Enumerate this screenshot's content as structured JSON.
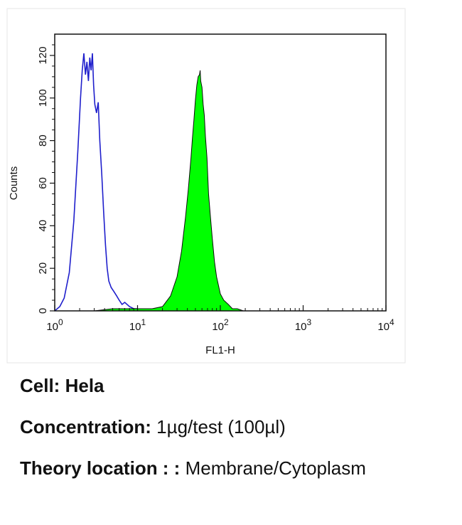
{
  "chart_data": {
    "type": "area",
    "xscale": "log",
    "xlim": [
      1,
      10000
    ],
    "ylim": [
      0,
      130
    ],
    "xlabel": "FL1-H",
    "ylabel": "Counts",
    "x_tick_labels": [
      {
        "value": 1,
        "base": "10",
        "exp": "0"
      },
      {
        "value": 10,
        "base": "10",
        "exp": "1"
      },
      {
        "value": 100,
        "base": "10",
        "exp": "2"
      },
      {
        "value": 1000,
        "base": "10",
        "exp": "3"
      },
      {
        "value": 10000,
        "base": "10",
        "exp": "4"
      }
    ],
    "y_ticks": [
      0,
      20,
      40,
      60,
      80,
      100,
      120
    ],
    "grid": false,
    "series": [
      {
        "style": "outline",
        "color": "#1f1fcc",
        "x": [
          1.0,
          1.15,
          1.3,
          1.5,
          1.7,
          1.9,
          2.05,
          2.15,
          2.25,
          2.35,
          2.45,
          2.55,
          2.65,
          2.75,
          2.85,
          2.95,
          3.05,
          3.2,
          3.35,
          3.5,
          3.7,
          3.9,
          4.1,
          4.3,
          4.5,
          4.8,
          5.2,
          5.6,
          6.0,
          6.5,
          7.0,
          8.0,
          9.0,
          10.0,
          12.0
        ],
        "y": [
          0,
          2,
          6,
          18,
          42,
          75,
          100,
          113,
          121,
          111,
          117,
          108,
          119,
          113,
          121,
          106,
          97,
          93,
          98,
          80,
          64,
          46,
          31,
          20,
          14,
          11,
          9,
          7,
          5,
          3,
          4,
          2,
          1,
          1,
          0
        ]
      },
      {
        "style": "filled",
        "color": "#00ff00",
        "x": [
          3.0,
          5.0,
          10.0,
          15.0,
          20.0,
          25.0,
          30.0,
          34.0,
          38.0,
          41.0,
          44.0,
          46.0,
          48.0,
          50.0,
          52.0,
          54.0,
          56.0,
          57.0,
          58.0,
          60.0,
          62.0,
          64.0,
          66.0,
          69.0,
          72.0,
          76.0,
          80.0,
          85.0,
          90.0,
          100.0,
          110.0,
          125.0,
          140.0,
          160.0,
          190.0,
          250.0
        ],
        "y": [
          0,
          1,
          1,
          1,
          2,
          7,
          16,
          28,
          44,
          57,
          71,
          81,
          90,
          99,
          106,
          110,
          111,
          113,
          108,
          105,
          97,
          92,
          82,
          72,
          55,
          44,
          34,
          23,
          16,
          8,
          5,
          3,
          1,
          1,
          0,
          0
        ]
      }
    ]
  },
  "info": {
    "cell_label": "Cell:",
    "cell_value": "Hela",
    "concentration_label": "Concentration:",
    "concentration_value": "1µg/test (100µl)",
    "theory_label": "Theory location : :",
    "theory_value": "Membrane/Cytoplasm"
  }
}
